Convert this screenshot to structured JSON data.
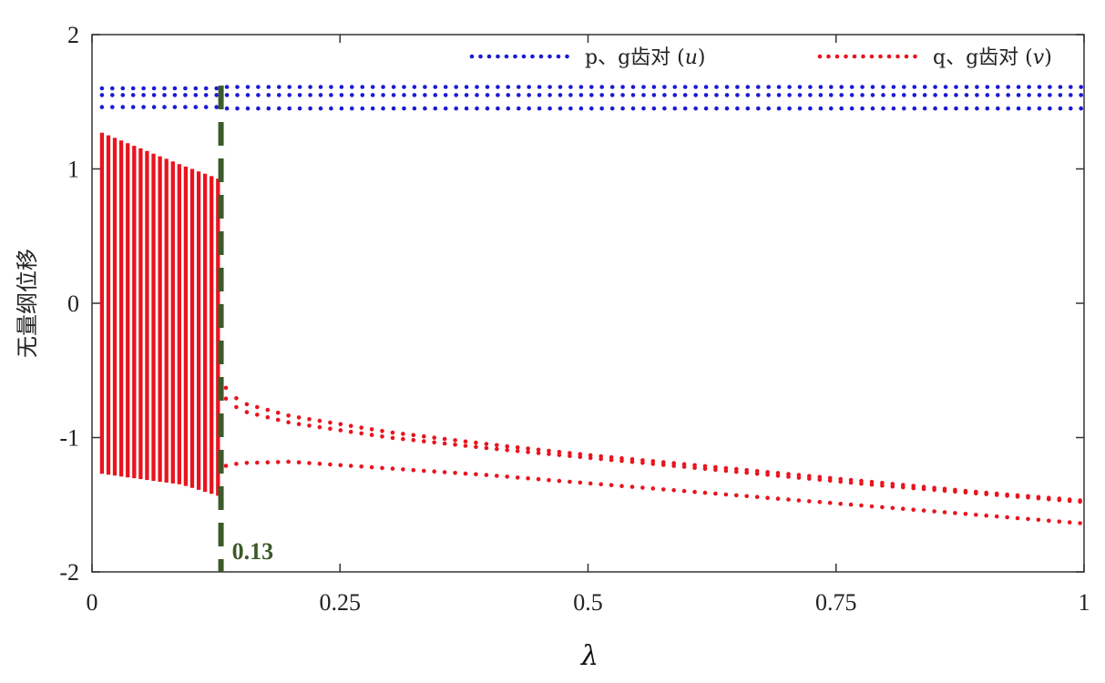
{
  "chart_data": {
    "type": "scatter",
    "xlabel": "λ",
    "ylabel": "无量纲位移",
    "xlim": [
      0,
      1
    ],
    "ylim": [
      -2,
      2
    ],
    "x_ticks": [
      0,
      0.25,
      0.5,
      0.75,
      1
    ],
    "x_tick_labels": [
      "0",
      "0.25",
      "0.5",
      "0.75",
      "1"
    ],
    "y_ticks": [
      -2,
      -1,
      0,
      1,
      2
    ],
    "y_tick_labels": [
      "-2",
      "-1",
      "0",
      "1",
      "2"
    ],
    "grid": false,
    "legend_position": "top",
    "series": [
      {
        "name": "p、g齿对 (u)",
        "legend_prefix": "p、g齿对 (",
        "legend_var": "u",
        "legend_suffix": ")",
        "color": "#1a1ad6",
        "marker": "dot",
        "branches": [
          {
            "x": [
              0.01,
              0.13,
              0.13,
              1.0
            ],
            "y": [
              1.6,
              1.6,
              1.61,
              1.61
            ]
          },
          {
            "x": [
              0.01,
              0.13,
              0.13,
              1.0
            ],
            "y": [
              1.55,
              1.55,
              1.55,
              1.55
            ]
          },
          {
            "x": [
              0.01,
              0.13,
              0.13,
              1.0
            ],
            "y": [
              1.46,
              1.46,
              1.45,
              1.45
            ]
          }
        ]
      },
      {
        "name": "q、g齿对 (v)",
        "legend_prefix": "q、g齿对 (",
        "legend_var": "v",
        "legend_suffix": ")",
        "color": "#e8141e",
        "marker": "dot",
        "chaotic_region": {
          "x_range": [
            0.01,
            0.13
          ],
          "upper": {
            "x": [
              0.01,
              0.05,
              0.09,
              0.13
            ],
            "y": [
              1.27,
              1.15,
              1.03,
              0.92
            ]
          },
          "lower": {
            "x": [
              0.01,
              0.05,
              0.09,
              0.13
            ],
            "y": [
              -1.27,
              -1.31,
              -1.35,
              -1.44
            ]
          }
        },
        "branches": [
          {
            "x": [
              0.135,
              0.15,
              0.2,
              0.3,
              0.4,
              0.5,
              0.6,
              0.7,
              0.8,
              0.9,
              1.0
            ],
            "y": [
              -0.63,
              -0.74,
              -0.84,
              -0.96,
              -1.05,
              -1.13,
              -1.2,
              -1.27,
              -1.34,
              -1.41,
              -1.47
            ]
          },
          {
            "x": [
              0.135,
              0.15,
              0.2,
              0.3,
              0.4,
              0.5,
              0.6,
              0.7,
              0.8,
              0.9,
              1.0
            ],
            "y": [
              -0.71,
              -0.8,
              -0.89,
              -1.0,
              -1.08,
              -1.15,
              -1.22,
              -1.29,
              -1.36,
              -1.42,
              -1.48
            ]
          },
          {
            "x": [
              0.135,
              0.15,
              0.2,
              0.3,
              0.4,
              0.5,
              0.6,
              0.7,
              0.8,
              0.9,
              1.0
            ],
            "y": [
              -1.21,
              -1.19,
              -1.18,
              -1.23,
              -1.28,
              -1.34,
              -1.4,
              -1.46,
              -1.52,
              -1.58,
              -1.64
            ]
          }
        ]
      }
    ],
    "annotations": [
      {
        "type": "vline",
        "x": 0.13,
        "color": "#3d5a2a",
        "style": "dashed",
        "label": "0.13"
      }
    ]
  }
}
